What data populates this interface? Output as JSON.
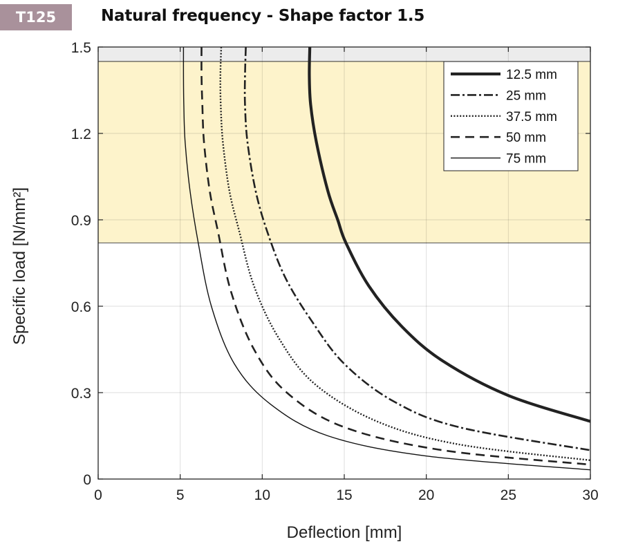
{
  "header": {
    "badge": "T125",
    "title": "Natural frequency - Shape factor 1.5"
  },
  "chart_data": {
    "type": "line",
    "title": "Natural frequency - Shape factor 1.5",
    "xlabel": "Deflection  [mm]",
    "ylabel": "Specific load [N/mm²]",
    "xlim": [
      0,
      30
    ],
    "ylim": [
      0,
      1.5
    ],
    "xticks": [
      0,
      5,
      10,
      15,
      20,
      25,
      30
    ],
    "yticks": [
      0,
      0.3,
      0.6,
      0.9,
      1.2,
      1.5
    ],
    "xtick_labels": [
      "0",
      "5",
      "10",
      "15",
      "20",
      "25",
      "30"
    ],
    "ytick_labels": [
      "0",
      "0.3",
      "0.6",
      "0.9",
      "1.2",
      "1.5"
    ],
    "grid": true,
    "legend_position": "top-right",
    "bands": [
      {
        "y_from": 0.82,
        "y_to": 1.45,
        "color": "#fdf3cb"
      },
      {
        "y_from": 1.45,
        "y_to": 1.5,
        "color": "#ececec"
      }
    ],
    "series": [
      {
        "name": "12.5 mm",
        "style": "solid-thick",
        "color": "#222222",
        "x": [
          12.9,
          12.87,
          12.95,
          13.3,
          14.0,
          14.6,
          15.1,
          16.5,
          18.5,
          21,
          25,
          30
        ],
        "y": [
          1.5,
          1.4,
          1.3,
          1.17,
          1.0,
          0.9,
          0.82,
          0.67,
          0.53,
          0.41,
          0.29,
          0.2
        ]
      },
      {
        "name": "25 mm",
        "style": "dashdot",
        "color": "#222222",
        "x": [
          9.0,
          8.95,
          8.95,
          9.1,
          9.6,
          10.3,
          11.4,
          13.0,
          15.0,
          18.0,
          22.0,
          30
        ],
        "y": [
          1.5,
          1.4,
          1.3,
          1.17,
          1.0,
          0.86,
          0.7,
          0.55,
          0.4,
          0.27,
          0.18,
          0.1
        ]
      },
      {
        "name": "37.5 mm",
        "style": "dotted",
        "color": "#222222",
        "x": [
          7.5,
          7.45,
          7.47,
          7.6,
          8.0,
          8.6,
          9.5,
          11.0,
          13.2,
          17.0,
          22.0,
          30
        ],
        "y": [
          1.5,
          1.4,
          1.3,
          1.17,
          1.0,
          0.86,
          0.67,
          0.49,
          0.33,
          0.2,
          0.12,
          0.065
        ]
      },
      {
        "name": "50 mm",
        "style": "dashed",
        "color": "#222222",
        "x": [
          6.3,
          6.3,
          6.35,
          6.45,
          6.8,
          7.3,
          8.1,
          9.5,
          11.5,
          15.0,
          21.0,
          30
        ],
        "y": [
          1.5,
          1.4,
          1.3,
          1.17,
          1.0,
          0.86,
          0.65,
          0.45,
          0.3,
          0.18,
          0.1,
          0.05
        ]
      },
      {
        "name": "75 mm",
        "style": "solid-thin",
        "color": "#111111",
        "x": [
          5.2,
          5.2,
          5.22,
          5.3,
          5.6,
          6.1,
          6.9,
          8.3,
          10.5,
          14.0,
          20.0,
          30
        ],
        "y": [
          1.5,
          1.4,
          1.3,
          1.17,
          1.0,
          0.82,
          0.6,
          0.4,
          0.26,
          0.15,
          0.08,
          0.032
        ]
      }
    ]
  }
}
